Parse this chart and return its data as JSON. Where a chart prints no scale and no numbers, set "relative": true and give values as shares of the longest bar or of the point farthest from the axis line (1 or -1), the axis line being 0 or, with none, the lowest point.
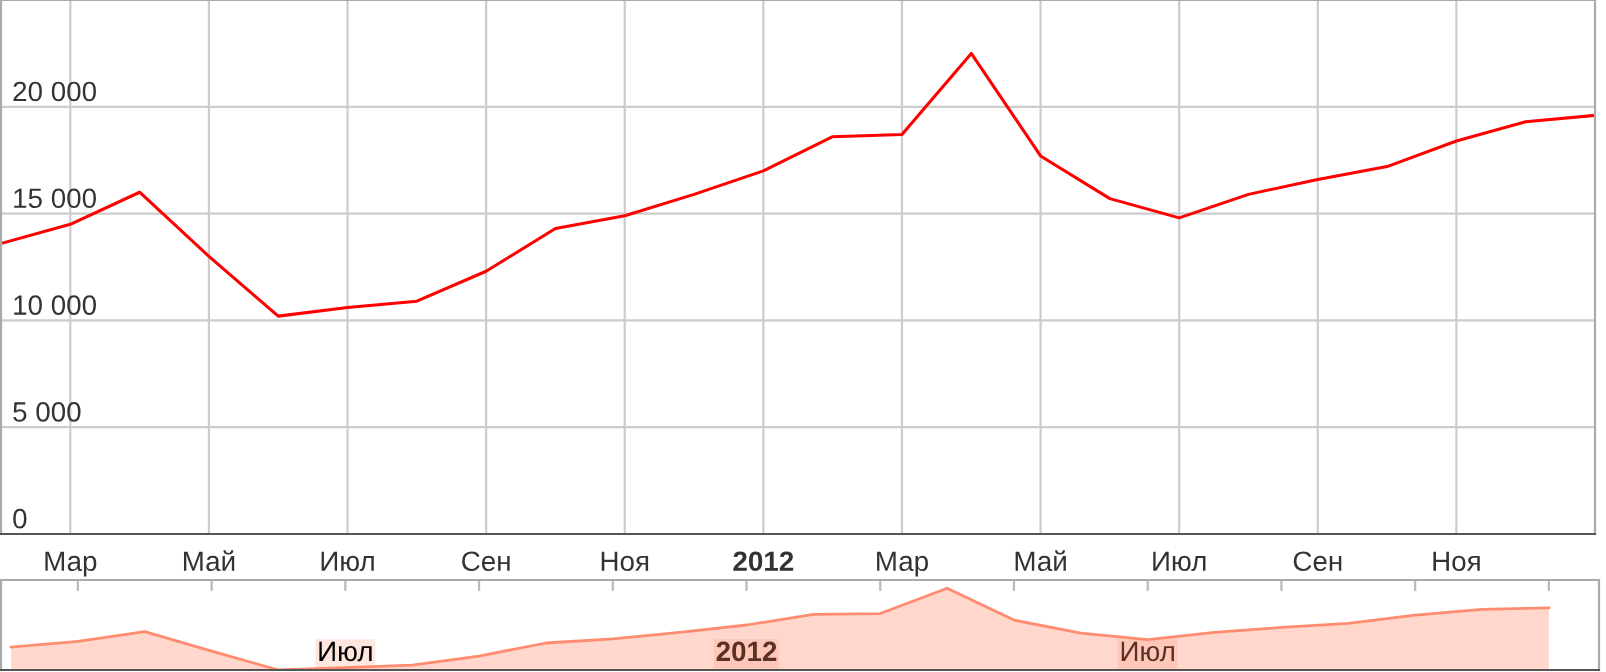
{
  "chart_data": [
    {
      "type": "line",
      "categories": [
        null,
        "Мар",
        null,
        "Май",
        null,
        "Июл",
        null,
        "Сен",
        null,
        "Ноя",
        null,
        "2012",
        null,
        "Мар",
        null,
        "Май",
        null,
        "Июл",
        null,
        "Сен",
        null,
        "Ноя",
        null,
        null
      ],
      "series": [
        {
          "color": "#ff0000",
          "values": [
            13600,
            14500,
            16000,
            13000,
            10200,
            10600,
            10900,
            12300,
            14300,
            14900,
            15900,
            17000,
            18600,
            18700,
            22500,
            17700,
            15700,
            14800,
            15900,
            16600,
            17200,
            18400,
            19300,
            19600
          ]
        }
      ],
      "ylim": [
        0,
        25000
      ],
      "yticks": [
        0,
        {
          "value": 5000,
          "label": "5 000"
        },
        {
          "value": 10000,
          "label": "10 000"
        },
        {
          "value": 15000,
          "label": "15 000"
        },
        {
          "value": 20000,
          "label": "20 000"
        }
      ],
      "grid": true,
      "legend": false
    },
    {
      "type": "area",
      "relative": true,
      "categories": [
        null,
        null,
        null,
        null,
        null,
        "Июл",
        null,
        null,
        null,
        null,
        null,
        "2012",
        null,
        null,
        null,
        null,
        null,
        "Июл",
        null,
        null,
        null,
        null,
        null,
        null
      ],
      "series": [
        {
          "color": "#ff8c70",
          "values": [
            0.28,
            0.35,
            0.47,
            0.23,
            0,
            0.03,
            0.06,
            0.17,
            0.33,
            0.38,
            0.46,
            0.55,
            0.68,
            0.69,
            1,
            0.61,
            0.45,
            0.37,
            0.46,
            0.52,
            0.57,
            0.67,
            0.74,
            0.76
          ]
        }
      ],
      "legend": false
    }
  ]
}
